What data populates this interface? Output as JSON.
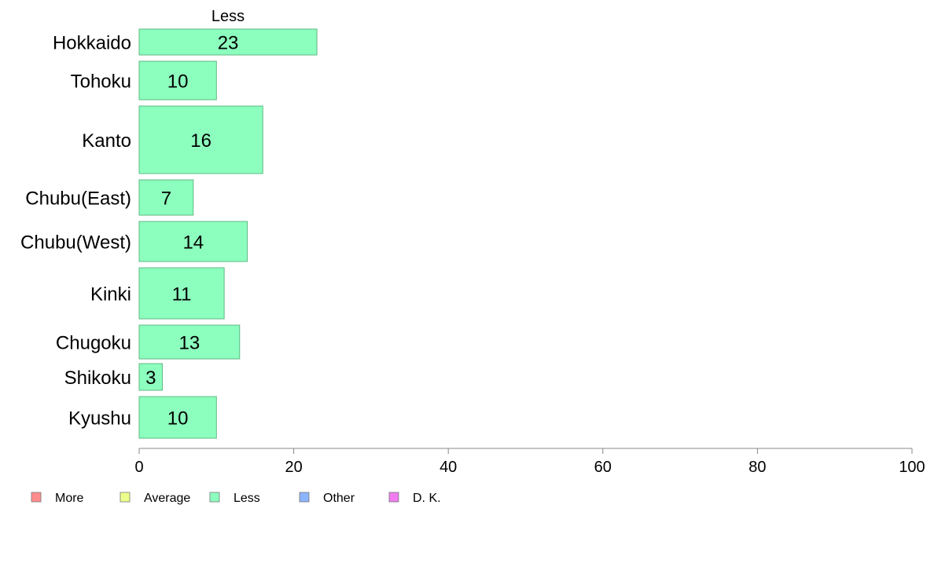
{
  "chart_data": {
    "type": "bar",
    "orientation": "horizontal",
    "column_title": "Less",
    "categories": [
      "Hokkaido",
      "Tohoku",
      "Kanto",
      "Chubu(East)",
      "Chubu(West)",
      "Kinki",
      "Chugoku",
      "Shikoku",
      "Kyushu"
    ],
    "values": [
      23,
      10,
      16,
      7,
      14,
      11,
      13,
      3,
      10
    ],
    "value_labels": [
      "23",
      "10",
      "16",
      "7",
      "14",
      "11",
      "13",
      "3",
      "10"
    ],
    "xlim": [
      0,
      100
    ],
    "xticks": [
      0,
      20,
      40,
      60,
      80,
      100
    ],
    "xtick_labels": [
      "0",
      "20",
      "40",
      "60",
      "80",
      "100"
    ],
    "grid": false,
    "legend": {
      "placement": "bottom-left",
      "entries": [
        {
          "label": "More",
          "color": "#ff8c8c"
        },
        {
          "label": "Average",
          "color": "#ecff8c"
        },
        {
          "label": "Less",
          "color": "#8cffbe"
        },
        {
          "label": "Other",
          "color": "#8cb4ff"
        },
        {
          "label": "D. K.",
          "color": "#f07cf0"
        }
      ]
    },
    "bar_color": "#8cffbe",
    "bar_stroke": "#5fb884"
  }
}
